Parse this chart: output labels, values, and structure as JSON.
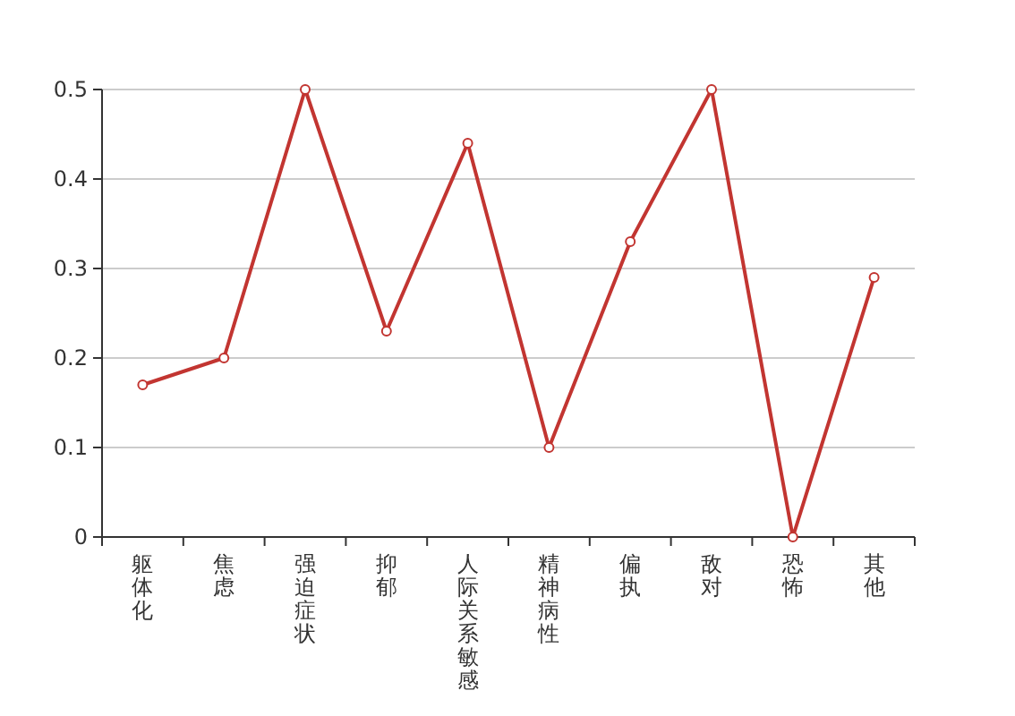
{
  "chart_data": {
    "type": "line",
    "categories": [
      "躯体化",
      "焦虑",
      "强迫症状",
      "抑郁",
      "人际关系敏感",
      "精神病性",
      "偏执",
      "敌对",
      "恐怖",
      "其他"
    ],
    "series": [
      {
        "color": "#c23531",
        "values": [
          0.17,
          0.2,
          0.5,
          0.23,
          0.44,
          0.1,
          0.33,
          0.5,
          0,
          0.29
        ]
      }
    ],
    "ylim": [
      0,
      0.5
    ],
    "yticks": [
      0,
      0.1,
      0.2,
      0.3,
      0.4,
      0.5
    ],
    "grid": "y",
    "marker": "circle",
    "line_style": "solid"
  }
}
